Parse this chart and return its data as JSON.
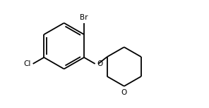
{
  "bg_color": "#ffffff",
  "line_color": "#000000",
  "lw": 1.3,
  "label_Br": "Br",
  "label_Cl": "Cl",
  "label_O1": "O",
  "label_O2": "O",
  "figsize": [
    2.96,
    1.54
  ],
  "dpi": 100,
  "xlim": [
    0.0,
    7.5
  ],
  "ylim": [
    -0.5,
    4.2
  ]
}
